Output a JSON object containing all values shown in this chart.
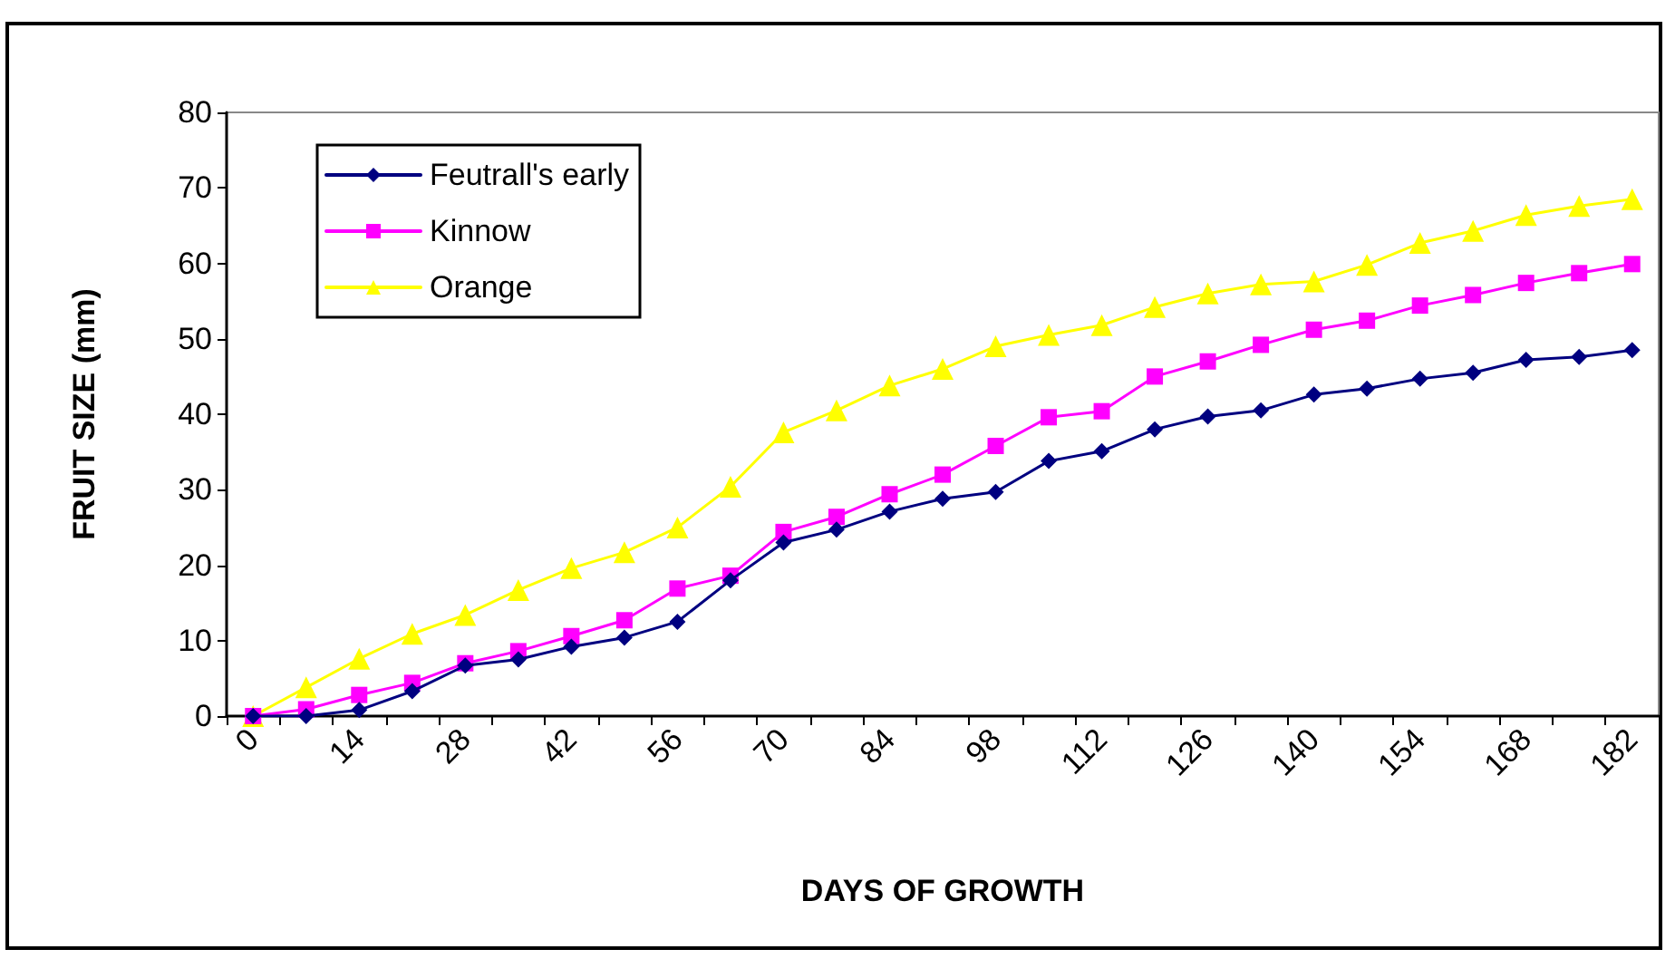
{
  "chart_data": {
    "type": "line",
    "xlabel": "DAYS OF GROWTH",
    "ylabel": "FRUIT SIZE (mm)",
    "categories": [
      "0",
      null,
      "14",
      null,
      "28",
      null,
      "42",
      null,
      "56",
      null,
      "70",
      null,
      "84",
      null,
      "98",
      null,
      "112",
      null,
      "126",
      null,
      "140",
      null,
      "154",
      null,
      "168",
      null,
      "182"
    ],
    "series": [
      {
        "name": "Feutrall's early",
        "color": "#000080",
        "marker": "diamond",
        "values": [
          0,
          0,
          0.8,
          3.3,
          6.7,
          7.5,
          9.2,
          10.4,
          12.5,
          18,
          23,
          24.7,
          27.1,
          28.8,
          29.7,
          33.8,
          35.1,
          38,
          39.7,
          40.5,
          42.6,
          43.4,
          44.7,
          45.5,
          47.2,
          47.6,
          48.5
        ]
      },
      {
        "name": "Kinnow",
        "color": "#ff00ff",
        "marker": "square",
        "values": [
          0,
          0.9,
          2.8,
          4.4,
          7,
          8.6,
          10.6,
          12.7,
          16.9,
          18.6,
          24.4,
          26.4,
          29.4,
          32,
          35.8,
          39.6,
          40.4,
          45,
          47,
          49.2,
          51.2,
          52.4,
          54.4,
          55.8,
          57.4,
          58.7,
          59.9
        ]
      },
      {
        "name": "Orange",
        "color": "#ffff00",
        "marker": "triangle",
        "values": [
          0,
          3.8,
          7.6,
          10.9,
          13.4,
          16.7,
          19.6,
          21.7,
          25,
          30.4,
          37.6,
          40.5,
          43.8,
          46,
          49,
          50.5,
          51.8,
          54.2,
          56,
          57.2,
          57.6,
          59.8,
          62.7,
          64.3,
          66.4,
          67.6,
          68.5
        ]
      }
    ],
    "ylim": [
      0,
      80
    ],
    "yticks": [
      0,
      10,
      20,
      30,
      40,
      50,
      60,
      70,
      80
    ],
    "grid": false,
    "legend": "top left",
    "line_style": "solid"
  }
}
